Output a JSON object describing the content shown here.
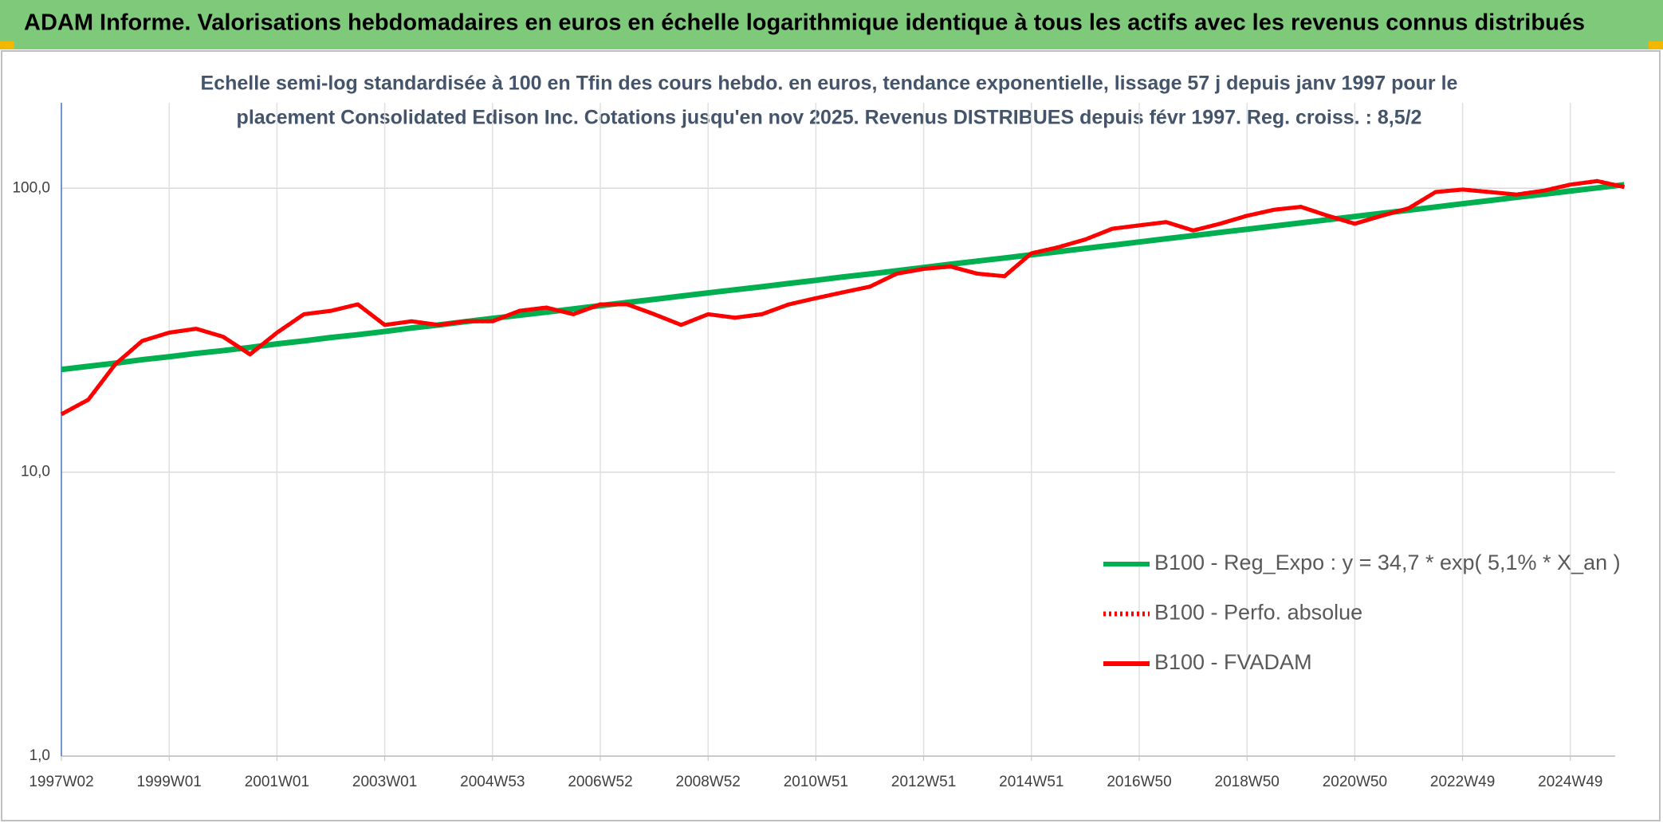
{
  "header": {
    "title": "ADAM Informe. Valorisations hebdomadaires en euros en échelle logarithmique identique à tous les actifs avec les revenus connus distribués"
  },
  "chart_data": {
    "type": "line",
    "subtitle": [
      "Echelle semi-log standardisée à 100 en Tfin des cours hebdo. en euros, tendance exponentielle, lissage 57 j depuis janv 1997 pour le",
      "placement Consolidated Edison Inc. Cotations jusqu'en nov 2025. Revenus DISTRIBUES depuis févr 1997. Reg. croiss. : 8,5/2"
    ],
    "categories": [
      "1997W02",
      null,
      null,
      null,
      "1999W01",
      null,
      null,
      null,
      "2001W01",
      null,
      null,
      null,
      "2003W01",
      null,
      null,
      null,
      "2004W53",
      null,
      null,
      null,
      "2006W52",
      null,
      null,
      null,
      "2008W52",
      null,
      null,
      null,
      "2010W51",
      null,
      null,
      null,
      "2012W51",
      null,
      null,
      null,
      "2014W51",
      null,
      null,
      null,
      "2016W50",
      null,
      null,
      null,
      "2018W50",
      null,
      null,
      null,
      "2020W50",
      null,
      null,
      null,
      "2022W49",
      null,
      null,
      null,
      "2024W49",
      null,
      null
    ],
    "series": [
      {
        "name": "B100 - Reg_Expo : y = 34,7 * exp( 5,1% *  X_an )",
        "color": "#00b050",
        "style": "solid",
        "values": [
          23.0,
          23.6,
          24.2,
          24.9,
          25.5,
          26.2,
          26.8,
          27.5,
          28.3,
          29.0,
          29.8,
          30.5,
          31.3,
          32.2,
          33.0,
          33.9,
          34.8,
          35.7,
          36.6,
          37.6,
          38.6,
          39.6,
          40.6,
          41.7,
          42.8,
          43.9,
          45.0,
          46.2,
          47.4,
          48.7,
          49.9,
          51.2,
          52.6,
          54.0,
          55.4,
          56.8,
          58.3,
          59.8,
          61.4,
          63.0,
          64.7,
          66.4,
          68.1,
          69.9,
          71.7,
          73.6,
          75.5,
          77.5,
          79.5,
          81.6,
          83.7,
          85.9,
          88.2,
          90.5,
          92.9,
          95.3,
          97.8,
          100.3,
          102.9
        ]
      },
      {
        "name": "B100 - Perfo. absolue",
        "color": "#ff0000",
        "style": "dotted",
        "values": [
          16,
          18,
          24,
          29,
          31,
          32,
          30,
          26,
          31,
          36,
          37,
          39,
          33,
          34,
          33,
          34,
          34,
          37,
          38,
          36,
          39,
          39,
          36,
          33,
          36,
          35,
          36,
          39,
          41,
          43,
          45,
          50,
          52,
          53,
          50,
          49,
          59,
          62,
          66,
          72,
          74,
          76,
          71,
          75,
          80,
          84,
          86,
          80,
          75,
          80,
          85,
          97,
          99,
          97,
          95,
          98,
          103,
          106,
          101
        ]
      },
      {
        "name": "B100 - FVADAM",
        "color": "#ff0000",
        "style": "solid",
        "values": [
          16,
          18,
          24,
          29,
          31,
          32,
          30,
          26,
          31,
          36,
          37,
          39,
          33,
          34,
          33,
          34,
          34,
          37,
          38,
          36,
          39,
          39,
          36,
          33,
          36,
          35,
          36,
          39,
          41,
          43,
          45,
          50,
          52,
          53,
          50,
          49,
          59,
          62,
          66,
          72,
          74,
          76,
          71,
          75,
          80,
          84,
          86,
          80,
          75,
          80,
          85,
          97,
          99,
          97,
          95,
          98,
          103,
          106,
          101
        ]
      }
    ],
    "ylim": [
      1,
      200
    ],
    "log_scale": true,
    "yticks": [
      {
        "value": 1,
        "label": "1,0"
      },
      {
        "value": 10,
        "label": "10,0"
      },
      {
        "value": 100,
        "label": "100,0"
      }
    ],
    "grid": true,
    "legend": "lower right"
  }
}
